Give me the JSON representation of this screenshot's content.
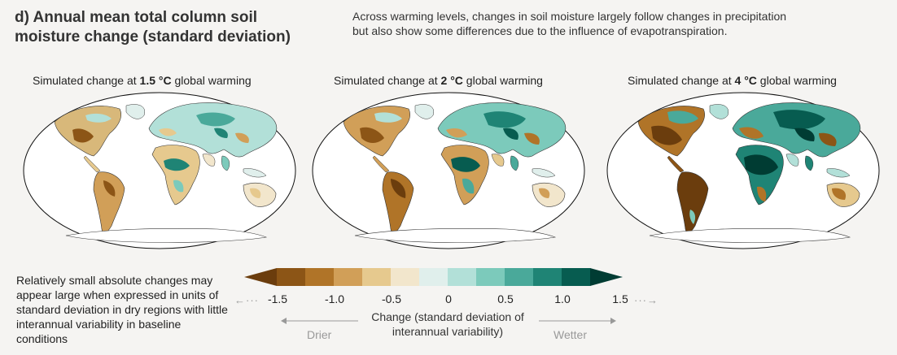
{
  "title": "d) Annual mean total column soil moisture change (standard deviation)",
  "note": "Across warming levels, changes in soil moisture largely follow changes in precipitation but also show some differences due to the influence of evapotranspiration.",
  "panels": [
    {
      "prefix": "Simulated change at ",
      "level": "1.5 °C",
      "suffix": " global warming"
    },
    {
      "prefix": "Simulated change at ",
      "level": "2 °C",
      "suffix": " global warming"
    },
    {
      "prefix": "Simulated change at ",
      "level": "4 °C",
      "suffix": " global warming"
    }
  ],
  "bottom_note": "Relatively small absolute changes may appear large when expressed in units of standard deviation in dry regions with little interannual variability in baseline conditions",
  "colorbar": {
    "colors": [
      "#6b3d0d",
      "#8c5516",
      "#b07428",
      "#d19f58",
      "#e6c98e",
      "#f2e6cc",
      "#e0efec",
      "#b2e0d8",
      "#7ccabb",
      "#4aa99a",
      "#1f8475",
      "#075c50",
      "#003c33"
    ],
    "ticks": [
      "-1.5",
      "-1.0",
      "-0.5",
      "0",
      "0.5",
      "1.0",
      "1.5"
    ],
    "label": "Change (standard deviation of interannual variability)",
    "left_arrow": "←···",
    "right_arrow": "···→",
    "drier": "Drier",
    "wetter": "Wetter"
  }
}
